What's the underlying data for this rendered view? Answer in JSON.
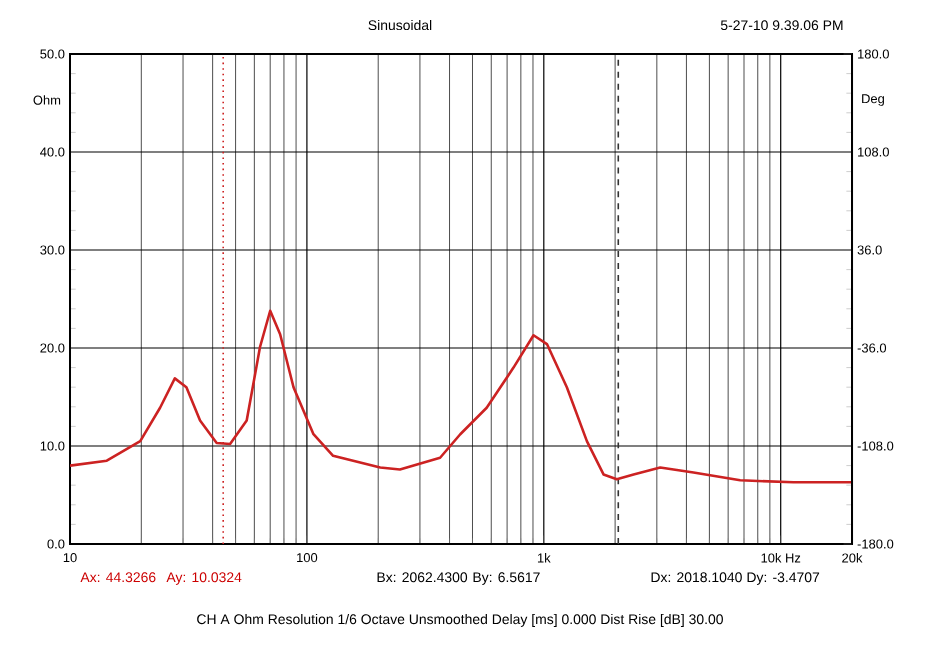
{
  "chart_data": {
    "type": "line",
    "title": "Sinusoidal",
    "ylabel": "Ohm",
    "y2label": "Deg",
    "x": [
      10,
      14.3,
      19.8,
      24,
      27.7,
      31,
      35.4,
      41.6,
      47.4,
      55.7,
      63.4,
      70,
      77.1,
      87.8,
      106.6,
      129,
      204,
      247,
      365,
      444,
      574,
      745,
      905,
      1031,
      1251,
      1520,
      1787,
      2033,
      2393,
      3100,
      4285,
      6745,
      11320,
      20000
    ],
    "series": [
      {
        "color": "#cc2222",
        "values": [
          8.0,
          8.5,
          10.5,
          13.9,
          16.9,
          16.0,
          12.6,
          10.3,
          10.2,
          12.6,
          20.1,
          23.8,
          21.4,
          16.0,
          11.2,
          9.0,
          7.8,
          7.6,
          8.8,
          11.2,
          13.9,
          18.0,
          21.3,
          20.4,
          16.0,
          10.5,
          7.1,
          6.6,
          7.1,
          7.8,
          7.3,
          6.5,
          6.3,
          6.3
        ]
      }
    ],
    "log": "x",
    "grid": true,
    "marker": "none",
    "line_style": "solid",
    "xlim": [
      10,
      20000
    ],
    "xticks": [
      10,
      100,
      {
        "value": 1000,
        "label": "1k"
      },
      {
        "value": 10000,
        "label": "10k Hz"
      },
      {
        "value": 20000,
        "label": "20k"
      }
    ],
    "ylim": [
      0,
      50
    ],
    "yticks": [
      {
        "value": 0,
        "label": "0.0"
      },
      {
        "value": 10,
        "label": "10.0"
      },
      {
        "value": 20,
        "label": "20.0"
      },
      {
        "value": 30,
        "label": "30.0"
      },
      {
        "value": 40,
        "label": "40.0"
      },
      {
        "value": 50,
        "label": "50.0"
      }
    ],
    "y2lim": [
      -180,
      180
    ],
    "y2ticks": [
      {
        "value": -180,
        "label": "-180.0"
      },
      {
        "value": -108,
        "label": "-108.0"
      },
      {
        "value": -36,
        "label": "-36.0"
      },
      {
        "value": 36,
        "label": "36.0"
      },
      {
        "value": 108,
        "label": "108.0"
      },
      {
        "value": 180,
        "label": "180.0"
      }
    ],
    "ref_lines": [
      {
        "axis": "x",
        "value": 44.3266,
        "color": "#cc2222",
        "line_style": "dotted"
      },
      {
        "axis": "x",
        "value": 2062.43,
        "color": "#333333",
        "line_style": "dashed"
      }
    ],
    "annotations": [
      "5-27-10 9.39.06 PM",
      "Ax: 44.3266",
      "Ay: 10.0324",
      "Bx: 2062.4300",
      "By: 6.5617",
      "Dx: 2018.1040",
      "Dy: -3.4707",
      "CH A   Ohm   Resolution 1/6 Octave   Unsmoothed   Delay [ms] 0.000   Dist Rise [dB] 30.00"
    ]
  }
}
